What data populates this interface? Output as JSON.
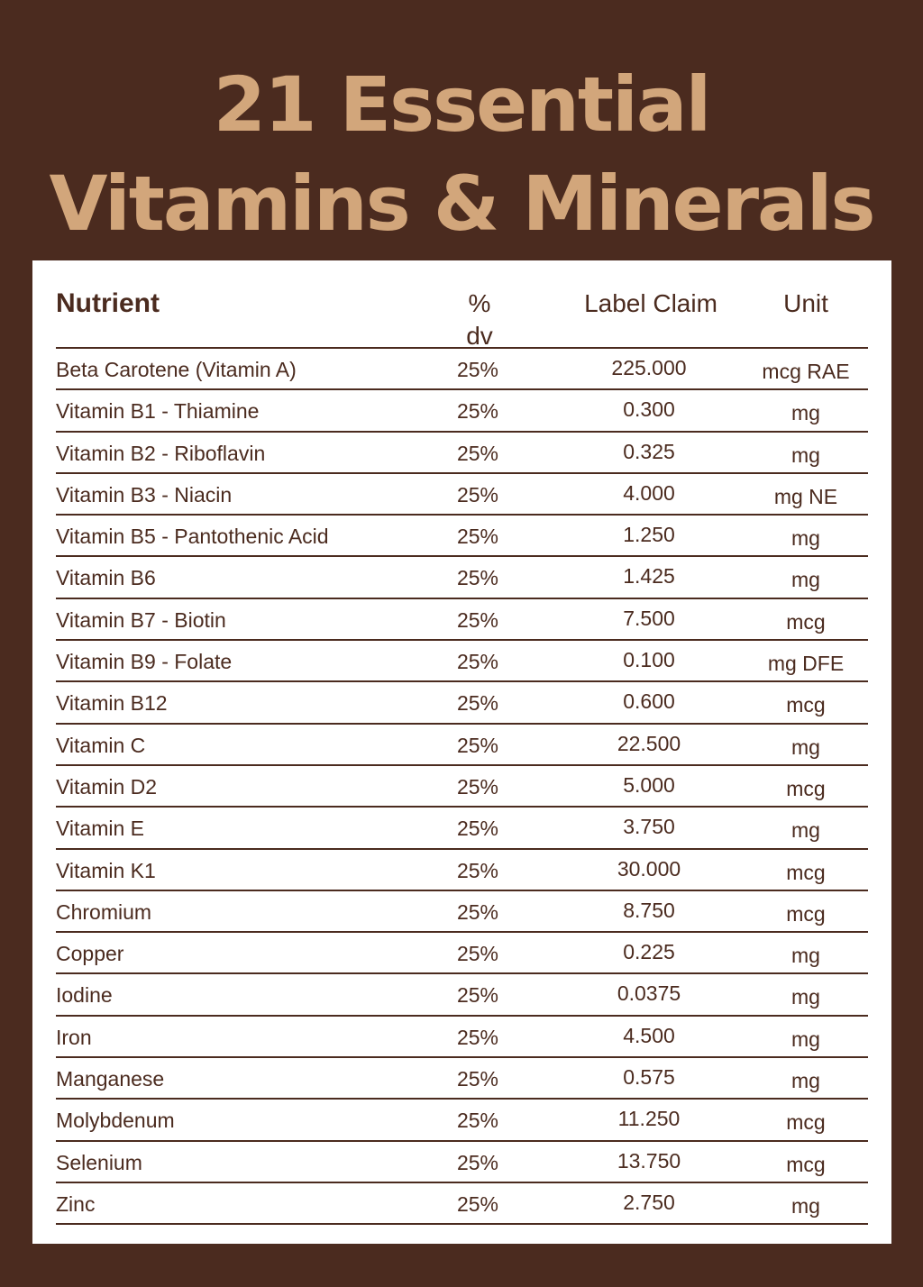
{
  "title": {
    "line1": "21 Essential",
    "line2": "Vitamins & Minerals"
  },
  "table": {
    "headers": {
      "nutrient": "Nutrient",
      "dv": "% dv",
      "claim": "Label Claim",
      "unit": "Unit"
    },
    "rows": [
      {
        "nutrient": "Beta Carotene (Vitamin A)",
        "dv": "25%",
        "claim": "225.000",
        "unit": "mcg RAE"
      },
      {
        "nutrient": "Vitamin B1 - Thiamine",
        "dv": "25%",
        "claim": "0.300",
        "unit": "mg"
      },
      {
        "nutrient": "Vitamin B2 - Riboflavin",
        "dv": "25%",
        "claim": "0.325",
        "unit": "mg"
      },
      {
        "nutrient": "Vitamin B3 - Niacin",
        "dv": "25%",
        "claim": "4.000",
        "unit": "mg NE"
      },
      {
        "nutrient": "Vitamin B5 - Pantothenic Acid",
        "dv": "25%",
        "claim": "1.250",
        "unit": "mg"
      },
      {
        "nutrient": "Vitamin B6",
        "dv": "25%",
        "claim": "1.425",
        "unit": "mg"
      },
      {
        "nutrient": "Vitamin B7 - Biotin",
        "dv": "25%",
        "claim": "7.500",
        "unit": "mcg"
      },
      {
        "nutrient": "Vitamin B9 - Folate",
        "dv": "25%",
        "claim": "0.100",
        "unit": "mg DFE"
      },
      {
        "nutrient": "Vitamin B12",
        "dv": "25%",
        "claim": "0.600",
        "unit": "mcg"
      },
      {
        "nutrient": "Vitamin C",
        "dv": "25%",
        "claim": "22.500",
        "unit": "mg"
      },
      {
        "nutrient": "Vitamin D2",
        "dv": "25%",
        "claim": "5.000",
        "unit": "mcg"
      },
      {
        "nutrient": "Vitamin E",
        "dv": "25%",
        "claim": "3.750",
        "unit": "mg"
      },
      {
        "nutrient": "Vitamin K1",
        "dv": "25%",
        "claim": "30.000",
        "unit": "mcg"
      },
      {
        "nutrient": "Chromium",
        "dv": "25%",
        "claim": "8.750",
        "unit": "mcg"
      },
      {
        "nutrient": "Copper",
        "dv": "25%",
        "claim": "0.225",
        "unit": "mg"
      },
      {
        "nutrient": "Iodine",
        "dv": "25%",
        "claim": "0.0375",
        "unit": "mg"
      },
      {
        "nutrient": "Iron",
        "dv": "25%",
        "claim": "4.500",
        "unit": "mg"
      },
      {
        "nutrient": "Manganese",
        "dv": "25%",
        "claim": "0.575",
        "unit": "mg"
      },
      {
        "nutrient": "Molybdenum",
        "dv": "25%",
        "claim": "11.250",
        "unit": "mcg"
      },
      {
        "nutrient": "Selenium",
        "dv": "25%",
        "claim": "13.750",
        "unit": "mcg"
      },
      {
        "nutrient": "Zinc",
        "dv": "25%",
        "claim": "2.750",
        "unit": "mg"
      }
    ]
  },
  "colors": {
    "background": "#4b2b1f",
    "title": "#d2a67b",
    "card": "#ffffff",
    "text": "#4b2b1f"
  }
}
